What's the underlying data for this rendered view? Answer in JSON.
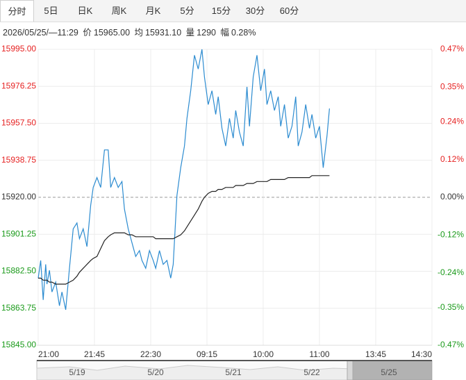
{
  "tabs": [
    "分时",
    "5日",
    "日K",
    "周K",
    "月K",
    "5分",
    "15分",
    "30分",
    "60分"
  ],
  "info": {
    "time": "2026/05/25/—11:29",
    "price_label": "价",
    "price": "15965.00",
    "avg_label": "均",
    "avg": "15931.10",
    "vol_label": "量",
    "vol": "1290",
    "amp_label": "幅",
    "amp": "0.28%"
  },
  "chart_data": {
    "type": "line",
    "x": [
      "21:00",
      "21:02",
      "21:04",
      "21:06",
      "21:07",
      "21:09",
      "21:11",
      "21:14",
      "21:17",
      "21:19",
      "21:22",
      "21:25",
      "21:28",
      "21:31",
      "21:33",
      "21:36",
      "21:39",
      "21:42",
      "21:44",
      "21:47",
      "21:50",
      "21:53",
      "21:56",
      "21:58",
      "22:01",
      "22:04",
      "22:07",
      "22:09",
      "22:12",
      "22:15",
      "22:18",
      "22:21",
      "22:23",
      "22:26",
      "22:29",
      "22:32",
      "22:34",
      "22:37",
      "22:40",
      "22:43",
      "22:46",
      "22:48",
      "22:51",
      "22:54",
      "22:57",
      "22:59",
      "09:02",
      "09:05",
      "09:08",
      "09:11",
      "09:13",
      "09:16",
      "09:19",
      "09:22",
      "09:24",
      "09:27",
      "09:30",
      "09:33",
      "09:36",
      "09:38",
      "09:41",
      "09:44",
      "09:47",
      "09:49",
      "09:52",
      "09:55",
      "09:58",
      "10:01",
      "10:03",
      "10:06",
      "10:09",
      "10:12",
      "10:14",
      "10:32",
      "10:35",
      "10:38",
      "10:41",
      "10:43",
      "10:46",
      "10:49",
      "10:52",
      "10:54",
      "10:57",
      "11:00",
      "11:03",
      "11:06",
      "11:08"
    ],
    "series": [
      {
        "name": "价",
        "color": "#2b8bd0",
        "values": [
          15879,
          15888,
          15868,
          15886,
          15876,
          15883,
          15872,
          15877,
          15865,
          15872,
          15863,
          15884,
          15904,
          15907,
          15899,
          15904,
          15895,
          15916,
          15925,
          15930,
          15925,
          15944,
          15944,
          15925,
          15930,
          15925,
          15928,
          15914,
          15904,
          15897,
          15890,
          15893,
          15888,
          15884,
          15893,
          15888,
          15884,
          15893,
          15886,
          15888,
          15879,
          15886,
          15921,
          15935,
          15946,
          15960,
          15974,
          15992,
          15985,
          15995,
          15981,
          15967,
          15974,
          15962,
          15971,
          15955,
          15946,
          15960,
          15950,
          15964,
          15953,
          15946,
          15976,
          15956,
          15981,
          15992,
          15974,
          15985,
          15967,
          15974,
          15964,
          15971,
          15956,
          15967,
          15950,
          15956,
          15971,
          15946,
          15953,
          15967,
          15955,
          15962,
          15950,
          15956,
          15935,
          15951,
          15965
        ]
      },
      {
        "name": "均",
        "color": "#222222",
        "values": [
          15879,
          15879,
          15878,
          15878,
          15878,
          15877,
          15877,
          15876,
          15876,
          15876,
          15876,
          15877,
          15878,
          15880,
          15882,
          15884,
          15886,
          15888,
          15889,
          15890,
          15894,
          15898,
          15900,
          15901,
          15902,
          15902,
          15902,
          15902,
          15901,
          15901,
          15900,
          15900,
          15900,
          15900,
          15900,
          15900,
          15899,
          15899,
          15899,
          15899,
          15899,
          15899,
          15900,
          15901,
          15903,
          15905,
          15908,
          15911,
          15914,
          15918,
          15920,
          15922,
          15923,
          15923,
          15924,
          15924,
          15925,
          15925,
          15925,
          15926,
          15926,
          15926,
          15927,
          15927,
          15927,
          15928,
          15928,
          15928,
          15928,
          15929,
          15929,
          15929,
          15929,
          15929,
          15930,
          15930,
          15930,
          15930,
          15930,
          15930,
          15930,
          15931,
          15931,
          15931,
          15931,
          15931,
          15931
        ]
      }
    ],
    "xticks": [
      "21:00",
      "21:45",
      "22:30",
      "09:15",
      "10:00",
      "11:00",
      "13:45",
      "14:30"
    ],
    "ylim": [
      15845,
      15995
    ],
    "yticks": [
      {
        "value": 15845,
        "label": "15845.00"
      },
      {
        "value": 15863.75,
        "label": "15863.75"
      },
      {
        "value": 15882.5,
        "label": "15882.50"
      },
      {
        "value": 15901.25,
        "label": "15901.25"
      },
      {
        "value": 15920,
        "label": "15920.00"
      },
      {
        "value": 15938.75,
        "label": "15938.75"
      },
      {
        "value": 15957.5,
        "label": "15957.50"
      },
      {
        "value": 15976.25,
        "label": "15976.25"
      },
      {
        "value": 15995,
        "label": "15995.00"
      }
    ],
    "y2lim": [
      -0.47,
      0.47
    ],
    "y2ticks": [
      {
        "value": -0.47,
        "label": "-0.47%"
      },
      {
        "value": -0.35,
        "label": "-0.35%"
      },
      {
        "value": -0.24,
        "label": "-0.24%"
      },
      {
        "value": -0.12,
        "label": "-0.12%"
      },
      {
        "value": 0,
        "label": "0.00%"
      },
      {
        "value": 0.12,
        "label": "0.12%"
      },
      {
        "value": 0.24,
        "label": "0.24%"
      },
      {
        "value": 0.35,
        "label": "0.35%"
      },
      {
        "value": 0.47,
        "label": "0.47%"
      }
    ],
    "grid": true
  },
  "navigator": {
    "labels": [
      "5/19",
      "5/20",
      "5/21",
      "5/22",
      "5/25"
    ]
  }
}
